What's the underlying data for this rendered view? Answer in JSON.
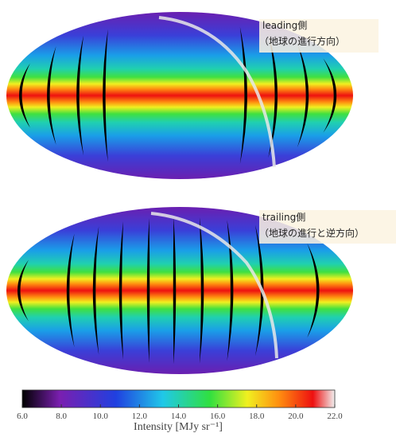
{
  "panels": [
    {
      "label": "leading側",
      "sublabel": "（地球の進行方向）"
    },
    {
      "label": "trailing側",
      "sublabel": "（地球の進行と逆方向）"
    }
  ],
  "colorbar": {
    "range": [
      6,
      22
    ],
    "ticks": [
      {
        "value": 6,
        "label": "6.0"
      },
      {
        "value": 8,
        "label": "8.0"
      },
      {
        "value": 10,
        "label": "10.0"
      },
      {
        "value": 12,
        "label": "12.0"
      },
      {
        "value": 14,
        "label": "14.0"
      },
      {
        "value": 16,
        "label": "16.0"
      },
      {
        "value": 18,
        "label": "18.0"
      },
      {
        "value": 20,
        "label": "20.0"
      },
      {
        "value": 22,
        "label": "22.0"
      }
    ],
    "label": "Intensity [MJy sr⁻¹]"
  }
}
